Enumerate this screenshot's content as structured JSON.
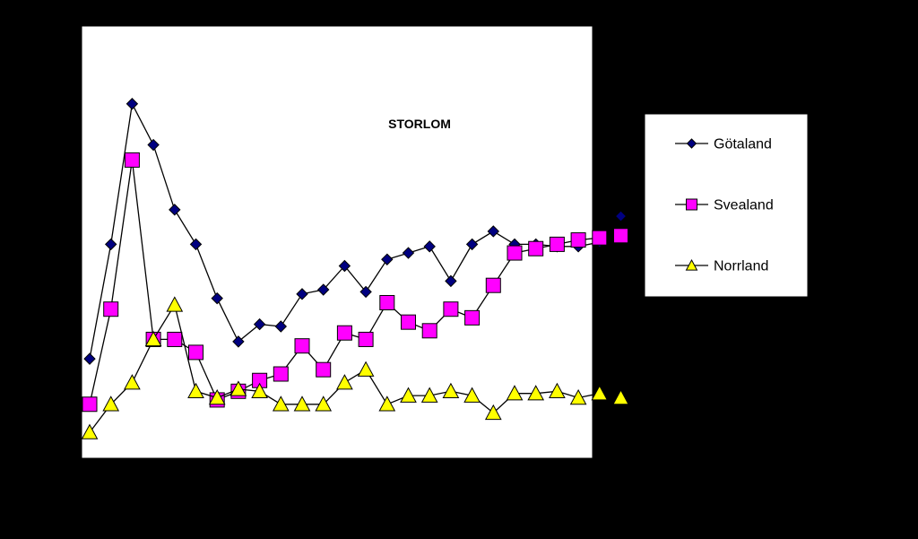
{
  "chart_data": {
    "type": "line",
    "title": "STORLOM",
    "xlabel": "",
    "ylabel": "",
    "grid": false,
    "legend": "right",
    "x": [
      1,
      2,
      3,
      4,
      5,
      6,
      7,
      8,
      9,
      10,
      11,
      12,
      13,
      14,
      15,
      16,
      17,
      18,
      19,
      20,
      21,
      22,
      23,
      24,
      25,
      26
    ],
    "ylim": [
      0,
      100
    ],
    "colors": {
      "background": "#000000",
      "plot_area": "#ffffff",
      "line": "#000000"
    },
    "series": [
      {
        "name": "Götaland",
        "marker": "diamond",
        "color": "#000080",
        "values": [
          23,
          49.5,
          82,
          72.5,
          57.5,
          49.5,
          37,
          27,
          31,
          30.5,
          38,
          39,
          44.5,
          38.5,
          46,
          47.5,
          49,
          41,
          49.5,
          52.5,
          49.5,
          49.5,
          49,
          49,
          50,
          56
        ]
      },
      {
        "name": "Svealand",
        "marker": "square",
        "color": "#ff00ff",
        "values": [
          12.5,
          34.5,
          69,
          27.5,
          27.5,
          24.5,
          13.5,
          15.5,
          18,
          19.5,
          26,
          20.5,
          29,
          27.5,
          36,
          31.5,
          29.5,
          34.5,
          32.5,
          40,
          47.5,
          48.5,
          49.5,
          50.5,
          51,
          51.5
        ]
      },
      {
        "name": "Norrland",
        "marker": "triangle",
        "color": "#ffff00",
        "values": [
          6,
          12.5,
          17.5,
          27.5,
          35.5,
          15.5,
          14,
          16,
          15.5,
          12.5,
          12.5,
          12.5,
          17.5,
          20.5,
          12.5,
          14.5,
          14.5,
          15.5,
          14.5,
          10.5,
          15,
          15,
          15.5,
          14,
          15,
          14
        ]
      }
    ]
  }
}
